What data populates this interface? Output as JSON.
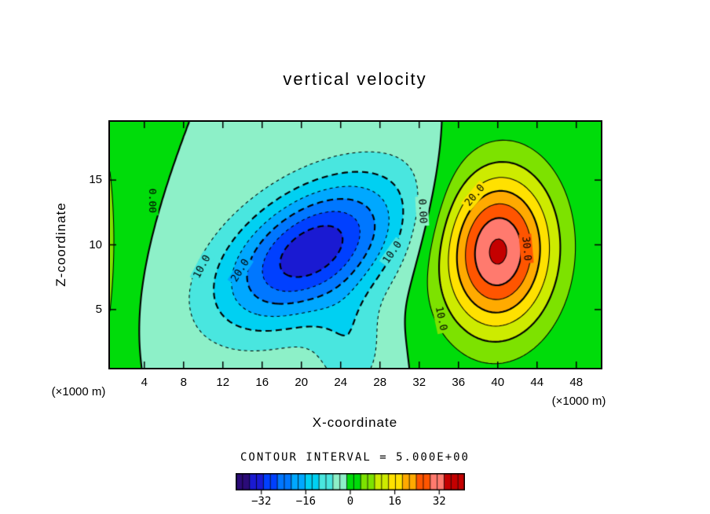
{
  "chart_data": {
    "type": "contour",
    "title": "vertical  velocity",
    "xlabel": "X-coordinate",
    "ylabel": "Z-coordinate",
    "x_unit": "(×1000 m)",
    "y_unit": "(×1000 m)",
    "contour_interval_text": "CONTOUR INTERVAL = 5.000E+00",
    "x_range": [
      0.5,
      50.5
    ],
    "z_range": [
      0.5,
      19.5
    ],
    "x_ticks": [
      4,
      8,
      12,
      16,
      20,
      24,
      28,
      32,
      36,
      40,
      44,
      48
    ],
    "z_ticks": [
      5,
      10,
      15
    ],
    "levels": {
      "start": -35,
      "end": 35,
      "interval": 5
    },
    "field_model": {
      "gaussians": [
        {
          "amp": 13,
          "x0": -3,
          "z0": 10,
          "sx": 4.0,
          "sz": 13.0,
          "rot": 0
        },
        {
          "amp": -34,
          "x0": 21,
          "z0": 9.5,
          "sx": 9.5,
          "sz": 4.6,
          "rot": 22
        },
        {
          "amp": 36,
          "x0": 40,
          "z0": 9.5,
          "sx": 5.6,
          "sz": 6.2,
          "rot": -12
        },
        {
          "amp": -8,
          "x0": 25,
          "z0": 2,
          "sx": 3.5,
          "sz": 4.0,
          "rot": 0
        }
      ]
    },
    "colormap": {
      "domain": [
        -40,
        40
      ],
      "band_size": 5,
      "colors": [
        "#2b0b78",
        "#1a1ad2",
        "#0040ff",
        "#0077ff",
        "#00a8ff",
        "#00d0f2",
        "#49e6df",
        "#8df0c8",
        "#00dc0a",
        "#7de200",
        "#cdeb00",
        "#ffe100",
        "#ffaa00",
        "#ff5500",
        "#ff7a6e",
        "#c40000"
      ]
    },
    "colorbar": {
      "domain": [
        -41.25,
        41.25
      ],
      "cells": 33,
      "ticks": [
        {
          "label": "−32",
          "value": -32
        },
        {
          "label": "−16",
          "value": -16
        },
        {
          "label": "0",
          "value": 0
        },
        {
          "label": "16",
          "value": 16
        },
        {
          "label": "32",
          "value": 32
        }
      ]
    },
    "contour_labels": [
      {
        "text": "0.00",
        "x": 4.8,
        "z": 13.4,
        "rot": 90
      },
      {
        "text": "10.0",
        "x": 9.9,
        "z": 8.3,
        "rot": -62
      },
      {
        "text": "20.0",
        "x": 13.8,
        "z": 8.0,
        "rot": -58
      },
      {
        "text": "10.0",
        "x": 29.3,
        "z": 9.4,
        "rot": -55
      },
      {
        "text": "0.00",
        "x": 32.3,
        "z": 12.6,
        "rot": 87
      },
      {
        "text": "10.0",
        "x": 34.2,
        "z": 4.3,
        "rot": 78
      },
      {
        "text": "20.0",
        "x": 37.7,
        "z": 13.8,
        "rot": -50
      },
      {
        "text": "30.0",
        "x": 42.9,
        "z": 9.7,
        "rot": 85
      }
    ]
  }
}
